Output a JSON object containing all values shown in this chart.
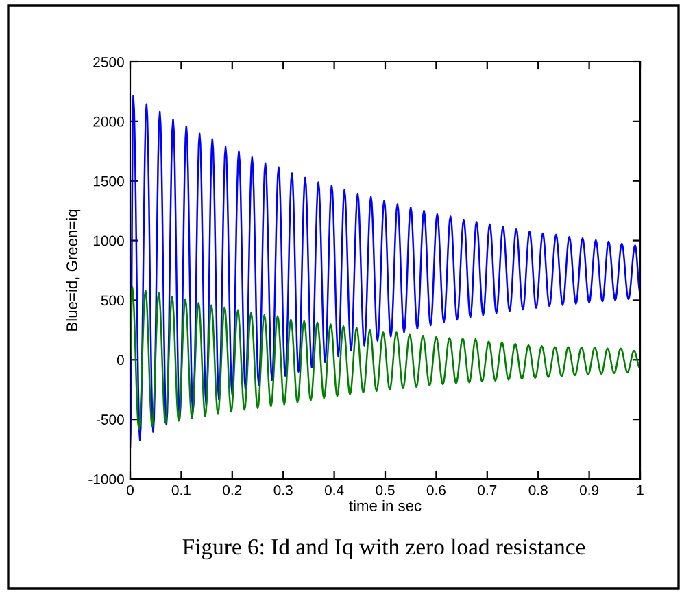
{
  "chart_data": {
    "type": "line",
    "xlabel": "time in sec",
    "ylabel": "Blue=id, Green=iq",
    "annotations": [
      "Figure 6: Id and Iq with zero load resistance"
    ],
    "xlim": [
      0,
      1
    ],
    "ylim": [
      -1000,
      2500
    ],
    "xticks": [
      0,
      0.1,
      0.2,
      0.3,
      0.4,
      0.5,
      0.6,
      0.7,
      0.8,
      0.9,
      1
    ],
    "yticks": [
      -1000,
      -500,
      0,
      500,
      1000,
      1500,
      2000,
      2500
    ],
    "grid": false,
    "legend": false,
    "marker": "none",
    "line_style": "solid",
    "series": [
      {
        "color": "#0000ff",
        "x": [
          0,
          0.006,
          0.019,
          0.032,
          0.045,
          0.058,
          0.071,
          0.084,
          0.097,
          0.11,
          0.123,
          0.136,
          0.149,
          0.161,
          0.174,
          0.187,
          0.2,
          0.213,
          0.226,
          0.239,
          0.252,
          0.265,
          0.278,
          0.291,
          0.304,
          0.317,
          0.33,
          0.343,
          0.356,
          0.369,
          0.382,
          0.395,
          0.408,
          0.42,
          0.433,
          0.446,
          0.459,
          0.472,
          0.485,
          0.498,
          0.511,
          0.524,
          0.537,
          0.55,
          0.563,
          0.576,
          0.589,
          0.602,
          0.615,
          0.628,
          0.641,
          0.654,
          0.667,
          0.679,
          0.692,
          0.705,
          0.718,
          0.731,
          0.744,
          0.757,
          0.77,
          0.783,
          0.796,
          0.809,
          0.822,
          0.835,
          0.848,
          0.861,
          0.874,
          0.887,
          0.9,
          0.913,
          0.926,
          0.938,
          0.951,
          0.964,
          0.977,
          0.99,
          1.0
        ],
        "values": [
          -735,
          2214,
          -675,
          2145,
          -606,
          2080,
          -545,
          2015,
          -490,
          1958,
          -436,
          1897,
          -380,
          1851,
          -335,
          1786,
          -290,
          1748,
          -250,
          1698,
          -210,
          1649,
          -170,
          1615,
          -135,
          1565,
          -100,
          1527,
          -65,
          1489,
          -20,
          1462,
          30,
          1424,
          80,
          1393,
          120,
          1366,
          160,
          1335,
          195,
          1305,
          230,
          1278,
          260,
          1251,
          290,
          1221,
          315,
          1202,
          335,
          1175,
          355,
          1156,
          375,
          1136,
          392,
          1114,
          408,
          1099,
          422,
          1076,
          436,
          1060,
          450,
          1049,
          460,
          1030,
          470,
          1019,
          480,
          1003,
          490,
          992,
          500,
          974,
          510,
          960,
          560
        ]
      },
      {
        "color": "#008000",
        "x": [
          0,
          0.004,
          0.017,
          0.03,
          0.043,
          0.056,
          0.069,
          0.082,
          0.095,
          0.108,
          0.121,
          0.134,
          0.147,
          0.159,
          0.172,
          0.185,
          0.198,
          0.211,
          0.224,
          0.237,
          0.25,
          0.263,
          0.276,
          0.289,
          0.302,
          0.315,
          0.328,
          0.341,
          0.354,
          0.367,
          0.38,
          0.393,
          0.406,
          0.418,
          0.431,
          0.444,
          0.457,
          0.47,
          0.483,
          0.496,
          0.509,
          0.522,
          0.535,
          0.548,
          0.561,
          0.574,
          0.587,
          0.6,
          0.613,
          0.626,
          0.639,
          0.652,
          0.665,
          0.677,
          0.69,
          0.703,
          0.716,
          0.729,
          0.742,
          0.755,
          0.768,
          0.781,
          0.794,
          0.807,
          0.82,
          0.833,
          0.846,
          0.859,
          0.872,
          0.885,
          0.898,
          0.911,
          0.924,
          0.936,
          0.949,
          0.962,
          0.975,
          0.988,
          1.0
        ],
        "values": [
          0,
          611,
          -580,
          580,
          -555,
          561,
          -530,
          527,
          -512,
          508,
          -490,
          477,
          -474,
          458,
          -455,
          439,
          -436,
          412,
          -420,
          393,
          -405,
          374,
          -390,
          366,
          -375,
          336,
          -358,
          324,
          -340,
          313,
          -322,
          298,
          -305,
          282,
          -290,
          267,
          -275,
          248,
          -262,
          229,
          -250,
          229,
          -238,
          210,
          -227,
          202,
          -215,
          191,
          -205,
          183,
          -197,
          179,
          -190,
          172,
          -182,
          153,
          -175,
          145,
          -168,
          133,
          -160,
          122,
          -152,
          115,
          -145,
          107,
          -138,
          107,
          -130,
          103,
          -124,
          103,
          -118,
          95,
          -112,
          95,
          -105,
          76,
          -76
        ]
      }
    ]
  }
}
